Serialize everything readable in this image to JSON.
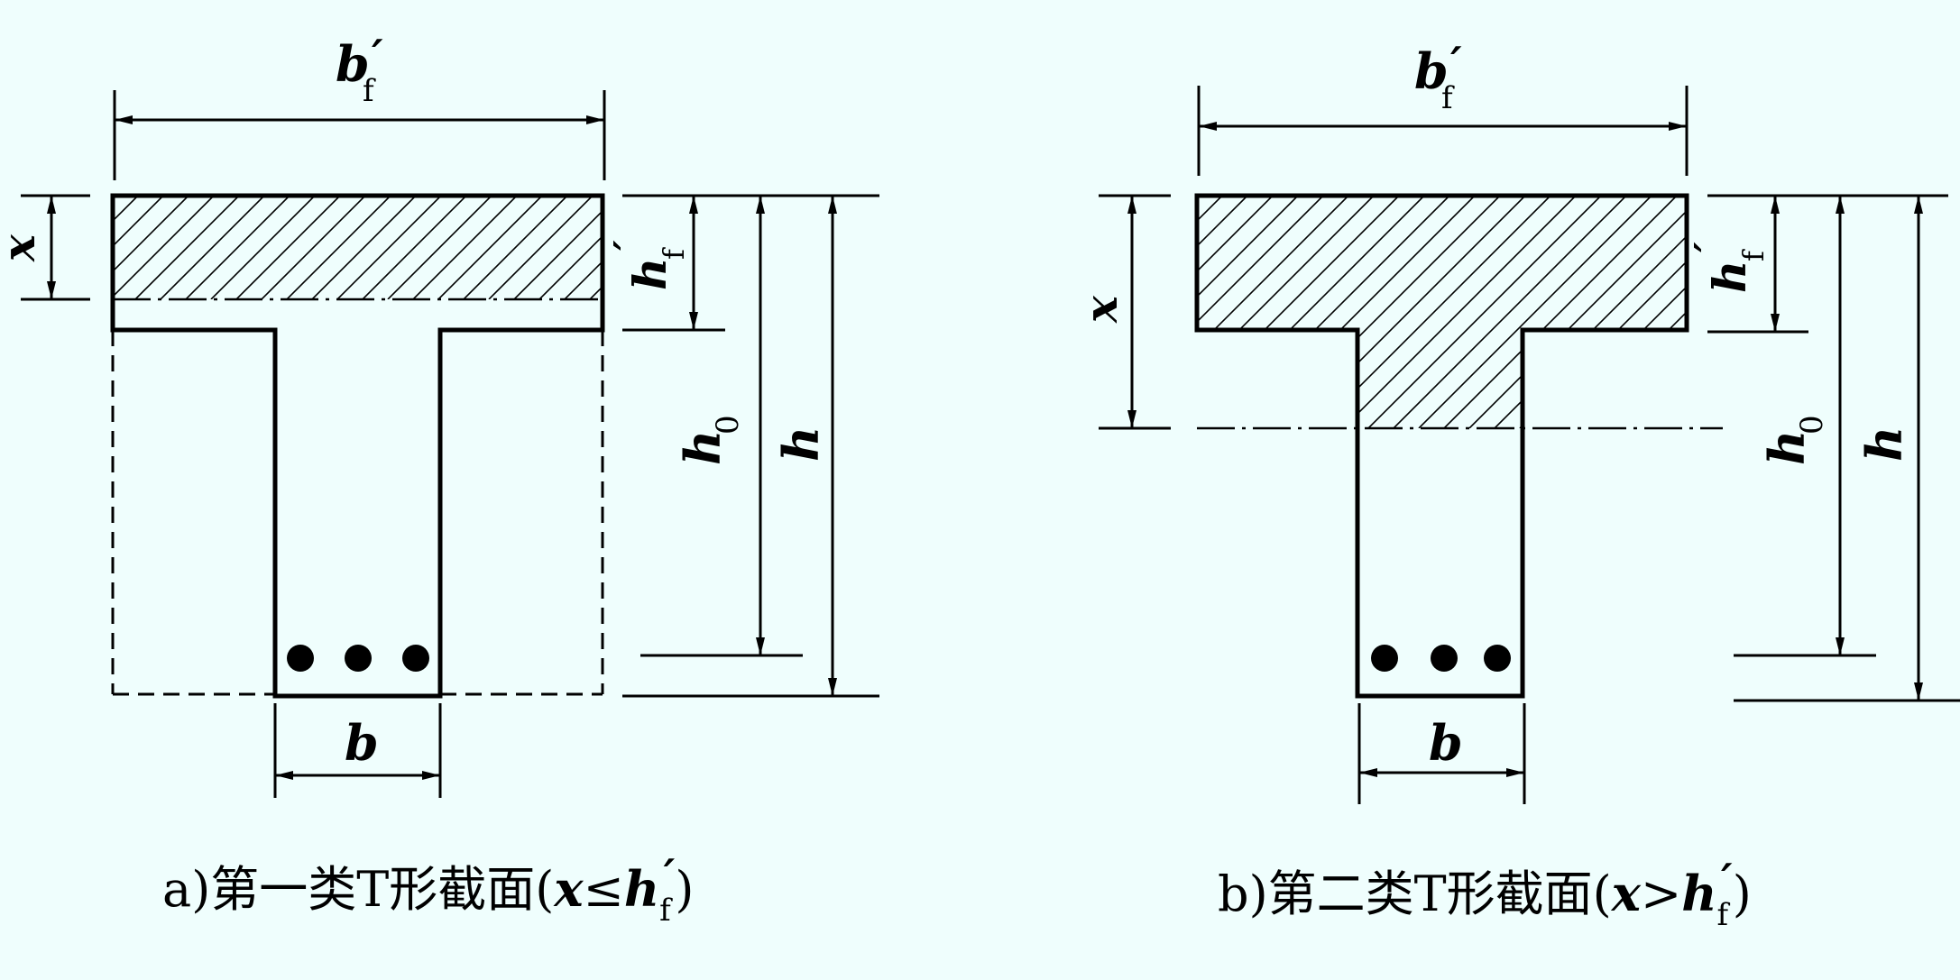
{
  "diagram_a": {
    "bf": "b",
    "bf_sub": "f",
    "prime": "′",
    "x": "x",
    "hf": "h",
    "hf_sub": "f",
    "h0": "h",
    "h0_sub": "0",
    "h": "h",
    "b": "b",
    "caption_prefix": "a)第一类T形截面(",
    "caption_x": "x",
    "caption_rel": "≤",
    "caption_h": "h",
    "caption_sub": "f",
    "caption_prime": "′",
    "caption_close": ")"
  },
  "diagram_b": {
    "bf": "b",
    "bf_sub": "f",
    "prime": "′",
    "x": "x",
    "hf": "h",
    "hf_sub": "f",
    "h0": "h",
    "h0_sub": "0",
    "h": "h",
    "b": "b",
    "caption_prefix": "b)第二类T形截面(",
    "caption_x": "x",
    "caption_rel": ">",
    "caption_h": "h",
    "caption_sub": "f",
    "caption_prime": "′",
    "caption_close": ")"
  }
}
